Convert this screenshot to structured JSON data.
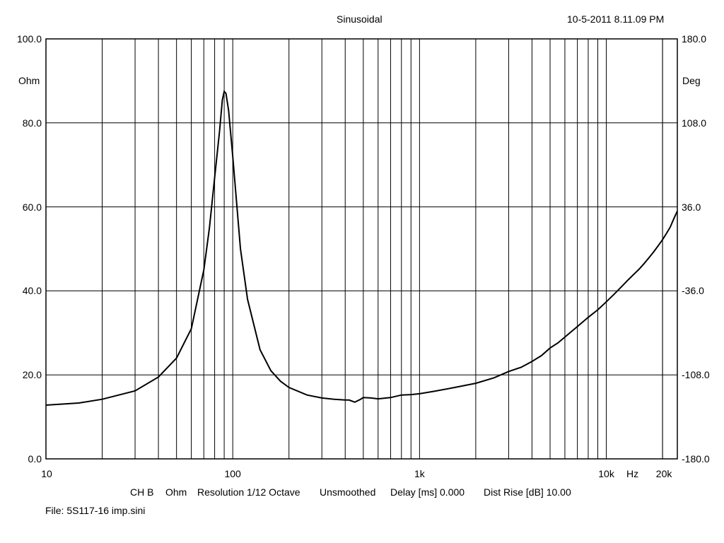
{
  "header": {
    "title": "Sinusoidal",
    "timestamp": "10-5-2011 8.11.09 PM"
  },
  "footer": {
    "channel": "CH B",
    "unit": "Ohm",
    "resolution": "Resolution 1/12 Octave",
    "smoothing": "Unsmoothed",
    "delay": "Delay [ms] 0.000",
    "dist_rise": "Dist Rise [dB] 10.00",
    "file": "File: 5S117-16 imp.sini"
  },
  "chart_data": {
    "type": "line",
    "title": "Sinusoidal",
    "xlabel": "Hz",
    "ylabel": "Ohm",
    "y2label": "Deg",
    "xscale": "log",
    "xlim": [
      10,
      24000
    ],
    "ylim": [
      0,
      100
    ],
    "y2lim": [
      -180,
      180
    ],
    "grid": true,
    "x_tick_labels": [
      {
        "value": 10,
        "label": "10"
      },
      {
        "value": 100,
        "label": "100"
      },
      {
        "value": 1000,
        "label": "1k"
      },
      {
        "value": 10000,
        "label": "10k"
      },
      {
        "value": 20000,
        "label": "20k"
      }
    ],
    "y_tick_labels": [
      "0.0",
      "20.0",
      "40.0",
      "60.0",
      "80.0",
      "100.0"
    ],
    "y2_tick_labels": [
      "-180.0",
      "-108.0",
      "-36.0",
      "36.0",
      "108.0",
      "180.0"
    ],
    "series": [
      {
        "color": "#000000",
        "x": [
          10,
          15,
          20,
          30,
          40,
          50,
          60,
          70,
          75,
          80,
          85,
          88,
          90,
          92,
          95,
          100,
          110,
          120,
          140,
          160,
          180,
          200,
          250,
          300,
          350,
          400,
          420,
          450,
          480,
          500,
          550,
          600,
          700,
          800,
          900,
          1000,
          1200,
          1500,
          2000,
          2500,
          3000,
          3500,
          4000,
          4500,
          5000,
          5500,
          6000,
          7000,
          8000,
          9000,
          10000,
          11000,
          12000,
          13000,
          14000,
          15000,
          16000,
          17000,
          18000,
          19000,
          20000,
          21000,
          22000,
          23000,
          24000
        ],
        "y": [
          12.8,
          13.3,
          14.2,
          16.2,
          19.5,
          24,
          31,
          45,
          55,
          67,
          78,
          85.5,
          87.5,
          87,
          83,
          72,
          50,
          38,
          26,
          21,
          18.5,
          17,
          15.2,
          14.5,
          14.2,
          14.0,
          14.0,
          13.5,
          14.1,
          14.6,
          14.5,
          14.3,
          14.6,
          15.2,
          15.3,
          15.5,
          16.1,
          16.9,
          18.0,
          19.3,
          20.8,
          21.8,
          23.2,
          24.6,
          26.4,
          27.6,
          29,
          31.5,
          33.7,
          35.5,
          37.4,
          39.2,
          40.9,
          42.5,
          43.9,
          45.2,
          46.6,
          48,
          49.4,
          50.8,
          52.2,
          53.7,
          55.2,
          57.2,
          59
        ]
      }
    ]
  }
}
